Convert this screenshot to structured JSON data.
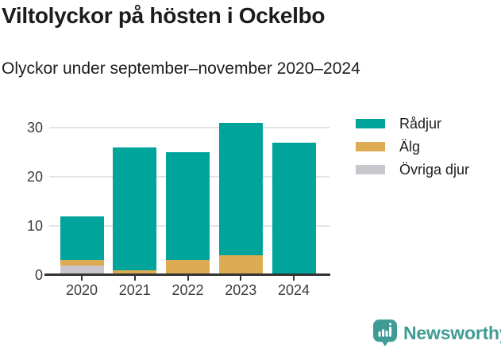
{
  "header": {
    "title": "Viltolyckor på hösten i Ockelbo",
    "subtitle": "Olyckor under september–november 2020–2024"
  },
  "chart_data": {
    "type": "bar",
    "stacked": true,
    "title": "Viltolyckor på hösten i Ockelbo",
    "subtitle": "Olyckor under september–november 2020–2024",
    "categories": [
      "2020",
      "2021",
      "2022",
      "2023",
      "2024"
    ],
    "series": [
      {
        "name": "Rådjur",
        "color": "#00a49a",
        "values": [
          9,
          25,
          22,
          27,
          27
        ]
      },
      {
        "name": "Älg",
        "color": "#dcab52",
        "values": [
          1,
          1,
          3,
          4,
          0
        ]
      },
      {
        "name": "Övriga djur",
        "color": "#c9c7cd",
        "values": [
          2,
          0,
          0,
          0,
          0
        ]
      }
    ],
    "stack_order_bottom_to_top": [
      "Övriga djur",
      "Älg",
      "Rådjur"
    ],
    "totals": [
      12,
      26,
      25,
      31,
      27
    ],
    "xlabel": "",
    "ylabel": "",
    "yticks": [
      0,
      10,
      20,
      30
    ],
    "ylim": [
      0,
      33
    ],
    "grid": "horizontal",
    "legend_position": "right",
    "colors": {
      "axis_line": "#333333",
      "gridline": "#e4e4e4",
      "tick_text": "#3c3c3c"
    }
  },
  "footer": {
    "brand": "Newsworthy",
    "brand_color": "#3f9c94"
  }
}
